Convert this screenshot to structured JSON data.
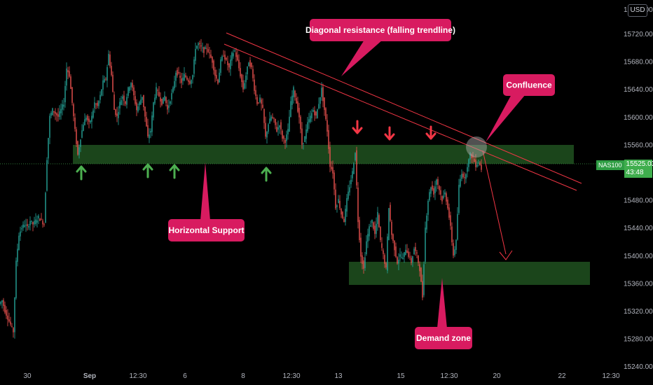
{
  "chart_data": {
    "type": "candlestick",
    "symbol": "NAS100",
    "currency": "USD",
    "last_price": "15525.03",
    "countdown": "43:48",
    "y_axis": {
      "range": [
        15210,
        15760
      ],
      "ticks": [
        15720,
        15680,
        15640,
        15600,
        15560,
        15480,
        15440,
        15400,
        15360,
        15320,
        15280,
        15240
      ],
      "tick_labels": [
        "15720.00",
        "15680.00",
        "15640.00",
        "15600.00",
        "15560.00",
        "15480.00",
        "15440.00",
        "15400.00",
        "15360.00",
        "15320.00",
        "15280.00",
        "15240.00"
      ],
      "top_label": "15760.00"
    },
    "x_axis": {
      "tick_labels": [
        "30",
        "Sep",
        "12:30",
        "6",
        "8",
        "12:30",
        "13",
        "15",
        "12:30",
        "20",
        "22",
        "12:30"
      ],
      "bold_labels": [
        "Sep"
      ]
    },
    "price_path": [
      [
        0,
        15330
      ],
      [
        4,
        15335
      ],
      [
        8,
        15320
      ],
      [
        12,
        15310
      ],
      [
        16,
        15300
      ],
      [
        20,
        15290
      ],
      [
        24,
        15390
      ],
      [
        28,
        15430
      ],
      [
        32,
        15440
      ],
      [
        36,
        15445
      ],
      [
        40,
        15440
      ],
      [
        44,
        15450
      ],
      [
        48,
        15445
      ],
      [
        52,
        15450
      ],
      [
        56,
        15455
      ],
      [
        60,
        15450
      ],
      [
        64,
        15445
      ],
      [
        68,
        15540
      ],
      [
        72,
        15600
      ],
      [
        76,
        15610
      ],
      [
        80,
        15605
      ],
      [
        84,
        15600
      ],
      [
        88,
        15610
      ],
      [
        92,
        15620
      ],
      [
        96,
        15670
      ],
      [
        100,
        15660
      ],
      [
        104,
        15620
      ],
      [
        108,
        15580
      ],
      [
        112,
        15545
      ],
      [
        116,
        15570
      ],
      [
        120,
        15590
      ],
      [
        124,
        15600
      ],
      [
        128,
        15590
      ],
      [
        132,
        15600
      ],
      [
        136,
        15620
      ],
      [
        140,
        15615
      ],
      [
        144,
        15630
      ],
      [
        148,
        15650
      ],
      [
        152,
        15655
      ],
      [
        156,
        15690
      ],
      [
        160,
        15660
      ],
      [
        164,
        15610
      ],
      [
        168,
        15600
      ],
      [
        172,
        15620
      ],
      [
        176,
        15630
      ],
      [
        180,
        15620
      ],
      [
        184,
        15640
      ],
      [
        188,
        15650
      ],
      [
        192,
        15630
      ],
      [
        196,
        15610
      ],
      [
        200,
        15620
      ],
      [
        204,
        15630
      ],
      [
        208,
        15600
      ],
      [
        212,
        15570
      ],
      [
        216,
        15580
      ],
      [
        220,
        15620
      ],
      [
        224,
        15640
      ],
      [
        228,
        15630
      ],
      [
        232,
        15620
      ],
      [
        236,
        15630
      ],
      [
        240,
        15610
      ],
      [
        244,
        15625
      ],
      [
        248,
        15640
      ],
      [
        252,
        15665
      ],
      [
        256,
        15660
      ],
      [
        260,
        15650
      ],
      [
        264,
        15660
      ],
      [
        268,
        15655
      ],
      [
        272,
        15650
      ],
      [
        276,
        15660
      ],
      [
        280,
        15700
      ],
      [
        284,
        15705
      ],
      [
        288,
        15700
      ],
      [
        292,
        15695
      ],
      [
        296,
        15700
      ],
      [
        300,
        15690
      ],
      [
        304,
        15680
      ],
      [
        308,
        15660
      ],
      [
        312,
        15650
      ],
      [
        316,
        15680
      ],
      [
        320,
        15690
      ],
      [
        324,
        15680
      ],
      [
        328,
        15670
      ],
      [
        332,
        15690
      ],
      [
        336,
        15695
      ],
      [
        340,
        15680
      ],
      [
        344,
        15660
      ],
      [
        348,
        15640
      ],
      [
        352,
        15660
      ],
      [
        356,
        15680
      ],
      [
        360,
        15670
      ],
      [
        364,
        15640
      ],
      [
        368,
        15620
      ],
      [
        372,
        15625
      ],
      [
        376,
        15610
      ],
      [
        380,
        15570
      ],
      [
        384,
        15590
      ],
      [
        388,
        15600
      ],
      [
        392,
        15595
      ],
      [
        396,
        15580
      ],
      [
        400,
        15590
      ],
      [
        404,
        15570
      ],
      [
        408,
        15565
      ],
      [
        412,
        15580
      ],
      [
        416,
        15620
      ],
      [
        420,
        15640
      ],
      [
        424,
        15620
      ],
      [
        428,
        15600
      ],
      [
        432,
        15560
      ],
      [
        436,
        15570
      ],
      [
        440,
        15590
      ],
      [
        444,
        15600
      ],
      [
        448,
        15610
      ],
      [
        452,
        15600
      ],
      [
        456,
        15620
      ],
      [
        460,
        15640
      ],
      [
        464,
        15610
      ],
      [
        468,
        15580
      ],
      [
        472,
        15530
      ],
      [
        476,
        15520
      ],
      [
        480,
        15470
      ],
      [
        484,
        15480
      ],
      [
        488,
        15460
      ],
      [
        492,
        15450
      ],
      [
        496,
        15480
      ],
      [
        500,
        15500
      ],
      [
        504,
        15520
      ],
      [
        508,
        15550
      ],
      [
        512,
        15450
      ],
      [
        516,
        15400
      ],
      [
        520,
        15380
      ],
      [
        524,
        15420
      ],
      [
        528,
        15440
      ],
      [
        532,
        15450
      ],
      [
        536,
        15430
      ],
      [
        540,
        15460
      ],
      [
        544,
        15420
      ],
      [
        548,
        15400
      ],
      [
        552,
        15380
      ],
      [
        556,
        15470
      ],
      [
        560,
        15430
      ],
      [
        564,
        15410
      ],
      [
        568,
        15390
      ],
      [
        572,
        15400
      ],
      [
        576,
        15395
      ],
      [
        580,
        15410
      ],
      [
        584,
        15400
      ],
      [
        588,
        15390
      ],
      [
        592,
        15410
      ],
      [
        596,
        15400
      ],
      [
        600,
        15380
      ],
      [
        604,
        15340
      ],
      [
        608,
        15440
      ],
      [
        612,
        15480
      ],
      [
        616,
        15500
      ],
      [
        620,
        15490
      ],
      [
        624,
        15510
      ],
      [
        628,
        15495
      ],
      [
        632,
        15480
      ],
      [
        636,
        15490
      ],
      [
        640,
        15470
      ],
      [
        644,
        15440
      ],
      [
        648,
        15400
      ],
      [
        652,
        15420
      ],
      [
        656,
        15500
      ],
      [
        660,
        15520
      ],
      [
        664,
        15510
      ],
      [
        668,
        15530
      ],
      [
        672,
        15545
      ],
      [
        676,
        15540
      ],
      [
        680,
        15530
      ],
      [
        684,
        15535
      ],
      [
        688,
        15525
      ]
    ]
  },
  "annotations": {
    "diagonal_resistance": "Diagonal resistance (falling trendline)",
    "confluence": "Confluence",
    "horizontal_support": "Horizontal Support",
    "demand_zone": "Demand zone"
  },
  "colors": {
    "up": "#26a69a",
    "down": "#ef5350",
    "zone": "#1e4d1e",
    "callout": "#d81b60",
    "arrow_up": "#4caf50",
    "arrow_down": "#f23645",
    "trendline": "#f23645"
  }
}
